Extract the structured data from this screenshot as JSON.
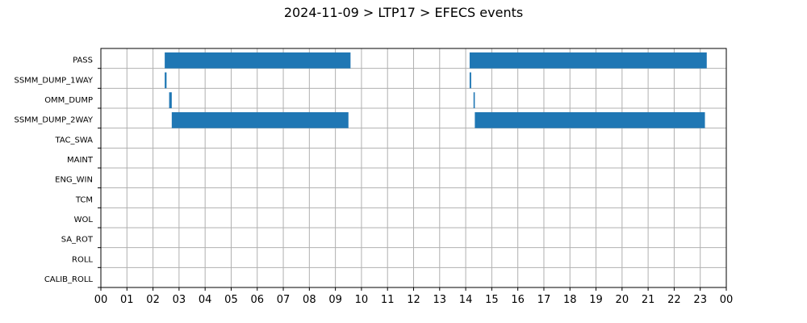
{
  "chart_data": {
    "type": "bar",
    "orientation": "horizontal-timeline",
    "title": "2024-11-09 > LTP17 > EFECS events",
    "xlabel": "",
    "ylabel": "",
    "xlim": [
      0,
      24
    ],
    "grid": true,
    "bar_color": "#1f77b4",
    "x_tick_labels": [
      "00",
      "01",
      "02",
      "03",
      "04",
      "05",
      "06",
      "07",
      "08",
      "09",
      "10",
      "11",
      "12",
      "13",
      "14",
      "15",
      "16",
      "17",
      "18",
      "19",
      "20",
      "21",
      "22",
      "23",
      "00"
    ],
    "categories": [
      "PASS",
      "SSMM_DUMP_1WAY",
      "OMM_DUMP",
      "SSMM_DUMP_2WAY",
      "TAC_SWA",
      "MAINT",
      "ENG_WIN",
      "TCM",
      "WOL",
      "SA_ROT",
      "ROLL",
      "CALIB_ROLL"
    ],
    "series": [
      {
        "category": "PASS",
        "intervals": [
          [
            2.45,
            9.58
          ],
          [
            14.15,
            23.25
          ]
        ]
      },
      {
        "category": "SSMM_DUMP_1WAY",
        "intervals": [
          [
            2.45,
            2.52
          ],
          [
            14.15,
            14.21
          ]
        ]
      },
      {
        "category": "OMM_DUMP",
        "intervals": [
          [
            2.62,
            2.72
          ],
          [
            14.3,
            14.35
          ]
        ]
      },
      {
        "category": "SSMM_DUMP_2WAY",
        "intervals": [
          [
            2.72,
            9.5
          ],
          [
            14.35,
            23.18
          ]
        ]
      },
      {
        "category": "TAC_SWA",
        "intervals": []
      },
      {
        "category": "MAINT",
        "intervals": []
      },
      {
        "category": "ENG_WIN",
        "intervals": []
      },
      {
        "category": "TCM",
        "intervals": []
      },
      {
        "category": "WOL",
        "intervals": []
      },
      {
        "category": "SA_ROT",
        "intervals": []
      },
      {
        "category": "ROLL",
        "intervals": []
      },
      {
        "category": "CALIB_ROLL",
        "intervals": []
      }
    ]
  }
}
